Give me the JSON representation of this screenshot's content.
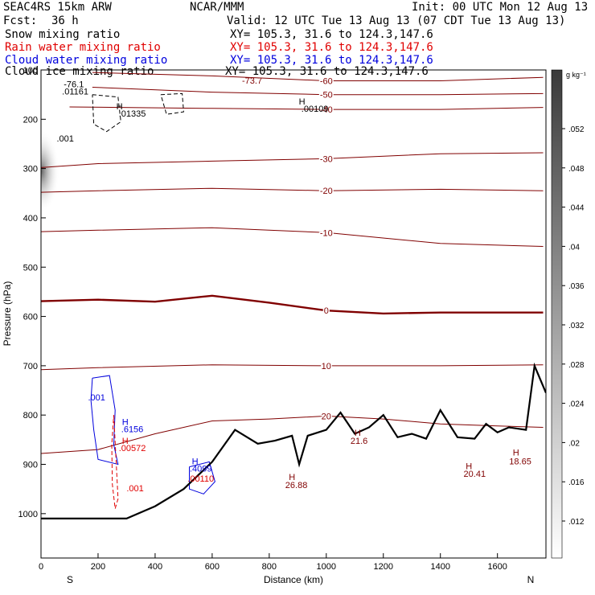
{
  "header": {
    "model": "SEAC4RS 15km ARW",
    "org": "NCAR/MMM",
    "init": "Init: 00 UTC Mon 12 Aug 13",
    "fcst_label": "Fcst:",
    "fcst_value": "36 h",
    "valid": "Valid: 12 UTC Tue 13 Aug 13 (07 CDT Tue 13 Aug 13)"
  },
  "fields": [
    {
      "name": "Snow mixing ratio",
      "xy": "XY= 105.3, 31.6 to 124.3,147.6",
      "color": "#000000"
    },
    {
      "name": "Rain water mixing ratio",
      "xy": "XY= 105.3, 31.6 to 124.3,147.6",
      "color": "#e00000"
    },
    {
      "name": "Cloud water mixing ratio",
      "xy": "XY= 105.3, 31.6 to 124.3,147.6",
      "color": "#0000dd"
    },
    {
      "name": "Cloud ice mixing ratio",
      "xy": "XY= 105.3, 31.6 to 124.3,147.6",
      "color": "#000000"
    }
  ],
  "colorbar": {
    "unit": "g kg⁻¹",
    "labels": [
      ".052",
      ".048",
      ".044",
      ".04",
      ".036",
      ".032",
      ".028",
      ".024",
      ".02",
      ".016",
      ".012"
    ]
  },
  "chart_data": {
    "type": "line",
    "xlabel": "Distance (km)",
    "ylabel": "Pressure (hPa)",
    "xlim": [
      0,
      1770
    ],
    "ylim": [
      1090,
      100
    ],
    "x_ticks": [
      0,
      200,
      400,
      600,
      800,
      1000,
      1200,
      1400,
      1600
    ],
    "y_ticks": [
      100,
      200,
      300,
      400,
      500,
      600,
      700,
      800,
      900,
      1000
    ],
    "x_end_labels": {
      "left": "S",
      "right": "N"
    },
    "grid": false,
    "colors": {
      "temperature": "#800000",
      "terrain": "#000000",
      "cloud_water": "#0000dd",
      "rain": "#e00000",
      "ice": "#000000"
    },
    "temperature_contours": [
      {
        "level": -60,
        "points": [
          [
            180,
            105
          ],
          [
            600,
            112
          ],
          [
            1000,
            122
          ],
          [
            1400,
            122
          ],
          [
            1760,
            115
          ]
        ]
      },
      {
        "level": -50,
        "points": [
          [
            180,
            135
          ],
          [
            600,
            145
          ],
          [
            1000,
            150
          ],
          [
            1400,
            150
          ],
          [
            1760,
            148
          ]
        ]
      },
      {
        "level": -40,
        "points": [
          [
            100,
            175
          ],
          [
            600,
            178
          ],
          [
            1000,
            180
          ],
          [
            1400,
            180
          ],
          [
            1760,
            176
          ]
        ]
      },
      {
        "level": -30,
        "points": [
          [
            0,
            298
          ],
          [
            200,
            290
          ],
          [
            600,
            285
          ],
          [
            1000,
            280
          ],
          [
            1400,
            270
          ],
          [
            1760,
            268
          ]
        ]
      },
      {
        "level": -20,
        "points": [
          [
            0,
            348
          ],
          [
            200,
            345
          ],
          [
            600,
            340
          ],
          [
            1000,
            345
          ],
          [
            1400,
            342
          ],
          [
            1760,
            345
          ]
        ]
      },
      {
        "level": -10,
        "points": [
          [
            0,
            428
          ],
          [
            200,
            425
          ],
          [
            600,
            420
          ],
          [
            1000,
            430
          ],
          [
            1400,
            452
          ],
          [
            1760,
            458
          ]
        ]
      },
      {
        "level": 0,
        "points": [
          [
            0,
            569
          ],
          [
            200,
            566
          ],
          [
            400,
            570
          ],
          [
            600,
            558
          ],
          [
            800,
            572
          ],
          [
            1000,
            588
          ],
          [
            1200,
            594
          ],
          [
            1400,
            592
          ],
          [
            1600,
            592
          ],
          [
            1760,
            592
          ]
        ]
      },
      {
        "level": 10,
        "points": [
          [
            0,
            708
          ],
          [
            200,
            704
          ],
          [
            600,
            698
          ],
          [
            1000,
            700
          ],
          [
            1400,
            700
          ],
          [
            1760,
            698
          ]
        ]
      },
      {
        "level": 20,
        "points": [
          [
            0,
            878
          ],
          [
            200,
            870
          ],
          [
            400,
            838
          ],
          [
            600,
            812
          ],
          [
            800,
            808
          ],
          [
            1000,
            802
          ],
          [
            1200,
            808
          ],
          [
            1400,
            818
          ],
          [
            1600,
            822
          ],
          [
            1760,
            825
          ]
        ]
      }
    ],
    "terrain": {
      "points": [
        [
          0,
          1010
        ],
        [
          300,
          1010
        ],
        [
          400,
          985
        ],
        [
          500,
          950
        ],
        [
          600,
          895
        ],
        [
          680,
          830
        ],
        [
          760,
          858
        ],
        [
          820,
          852
        ],
        [
          880,
          842
        ],
        [
          905,
          900
        ],
        [
          935,
          842
        ],
        [
          1000,
          830
        ],
        [
          1050,
          795
        ],
        [
          1100,
          838
        ],
        [
          1150,
          825
        ],
        [
          1200,
          800
        ],
        [
          1250,
          845
        ],
        [
          1300,
          838
        ],
        [
          1350,
          848
        ],
        [
          1400,
          790
        ],
        [
          1460,
          845
        ],
        [
          1520,
          848
        ],
        [
          1560,
          818
        ],
        [
          1600,
          835
        ],
        [
          1640,
          825
        ],
        [
          1700,
          830
        ],
        [
          1730,
          700
        ],
        [
          1770,
          755
        ]
      ]
    },
    "cloud_water_contours": [
      {
        "level": 0.001,
        "points": [
          [
            180,
            725
          ],
          [
            240,
            720
          ],
          [
            260,
            790
          ],
          [
            255,
            860
          ],
          [
            270,
            900
          ],
          [
            200,
            890
          ],
          [
            185,
            830
          ],
          [
            175,
            770
          ],
          [
            180,
            725
          ]
        ]
      },
      {
        "level": 0.001,
        "points": [
          [
            520,
            905
          ],
          [
            590,
            895
          ],
          [
            610,
            935
          ],
          [
            570,
            960
          ],
          [
            520,
            950
          ],
          [
            520,
            905
          ]
        ]
      }
    ],
    "rain_contours": [
      {
        "level": 0.001,
        "points": [
          [
            255,
            800
          ],
          [
            262,
            880
          ],
          [
            270,
            970
          ],
          [
            260,
            990
          ],
          [
            250,
            940
          ],
          [
            248,
            860
          ],
          [
            255,
            800
          ]
        ]
      }
    ],
    "ice_contours": [
      {
        "level": 0.001,
        "points": [
          [
            180,
            150
          ],
          [
            270,
            155
          ],
          [
            280,
            205
          ],
          [
            230,
            225
          ],
          [
            185,
            210
          ],
          [
            180,
            150
          ]
        ]
      },
      {
        "level": 0.001,
        "points": [
          [
            420,
            150
          ],
          [
            495,
            148
          ],
          [
            500,
            185
          ],
          [
            440,
            190
          ],
          [
            420,
            150
          ]
        ]
      }
    ],
    "annotations": [
      {
        "text": "-73.7",
        "x": 740,
        "y": 128,
        "color": "#800000"
      },
      {
        "text": "-76.1",
        "x": 115,
        "y": 135,
        "color": "#000000"
      },
      {
        "text": ".01161",
        "x": 120,
        "y": 150,
        "color": "#000000"
      },
      {
        "text": "H",
        "x": 275,
        "y": 180,
        "color": "#000000"
      },
      {
        "text": ".01335",
        "x": 320,
        "y": 195,
        "color": "#000000"
      },
      {
        "text": "H",
        "x": 915,
        "y": 170,
        "color": "#000000"
      },
      {
        "text": ".00109",
        "x": 960,
        "y": 185,
        "color": "#000000"
      },
      {
        "text": ".001",
        "x": 85,
        "y": 245,
        "color": "#000000"
      },
      {
        "text": ".001",
        "x": 195,
        "y": 770,
        "color": "#0000dd"
      },
      {
        "text": "H",
        "x": 295,
        "y": 820,
        "color": "#0000dd"
      },
      {
        "text": ".6156",
        "x": 320,
        "y": 835,
        "color": "#0000dd"
      },
      {
        "text": "H",
        "x": 295,
        "y": 858,
        "color": "#e00000"
      },
      {
        "text": ".00572",
        "x": 320,
        "y": 873,
        "color": "#e00000"
      },
      {
        "text": ".001",
        "x": 330,
        "y": 955,
        "color": "#e00000"
      },
      {
        "text": "H",
        "x": 540,
        "y": 900,
        "color": "#0000dd"
      },
      {
        "text": ".4099",
        "x": 560,
        "y": 915,
        "color": "#0000dd"
      },
      {
        "text": ".00110",
        "x": 560,
        "y": 935,
        "color": "#e00000"
      },
      {
        "text": "H",
        "x": 880,
        "y": 932,
        "color": "#800000"
      },
      {
        "text": "26.88",
        "x": 895,
        "y": 948,
        "color": "#800000"
      },
      {
        "text": "H",
        "x": 1110,
        "y": 842,
        "color": "#800000"
      },
      {
        "text": "21.6",
        "x": 1115,
        "y": 858,
        "color": "#800000"
      },
      {
        "text": "H",
        "x": 1500,
        "y": 910,
        "color": "#800000"
      },
      {
        "text": "20.41",
        "x": 1520,
        "y": 925,
        "color": "#800000"
      },
      {
        "text": "H",
        "x": 1665,
        "y": 882,
        "color": "#800000"
      },
      {
        "text": "18.65",
        "x": 1680,
        "y": 900,
        "color": "#800000"
      }
    ]
  }
}
